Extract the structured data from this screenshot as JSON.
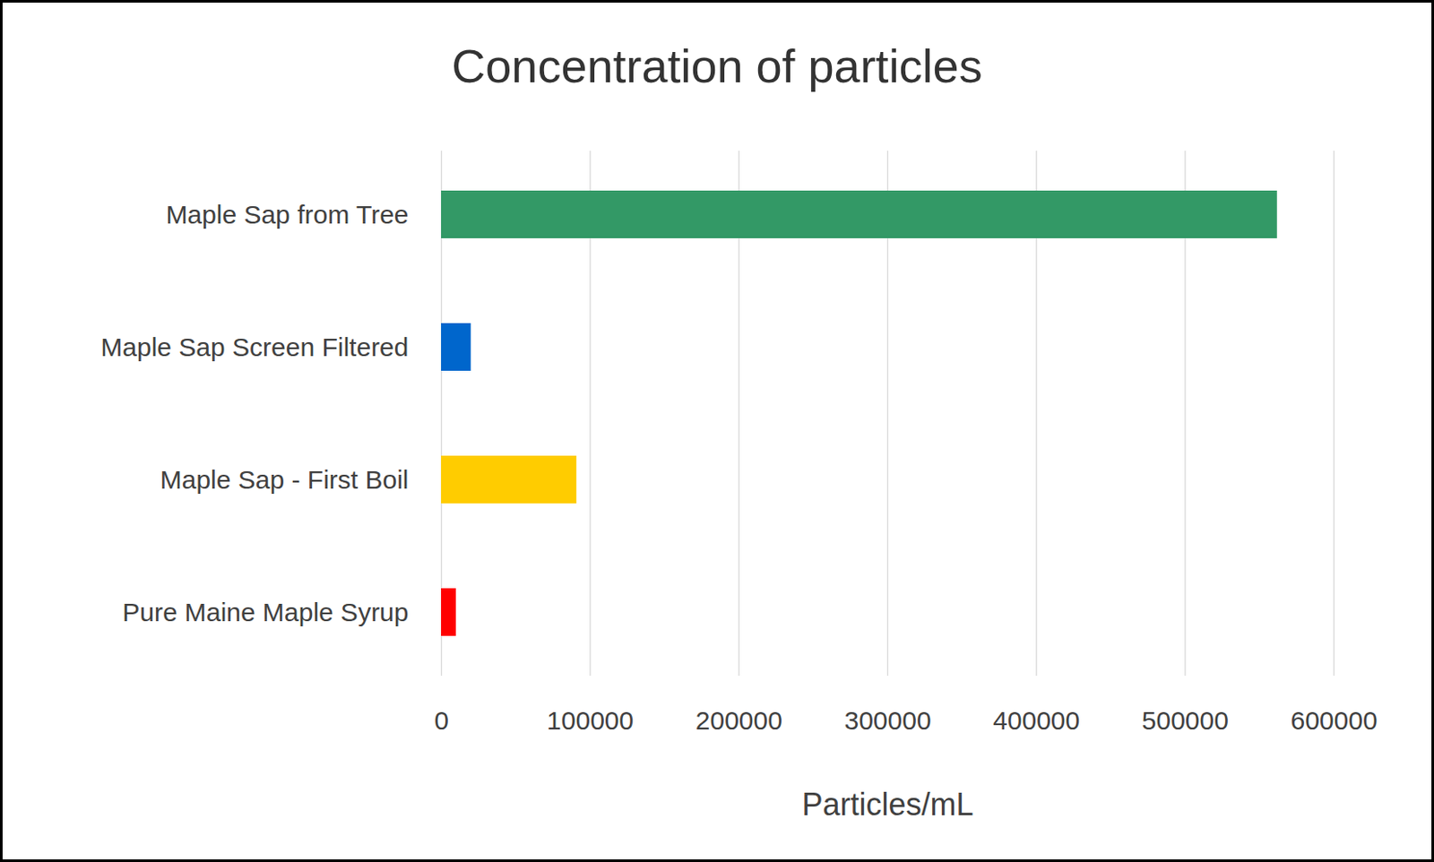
{
  "chart_data": {
    "type": "bar",
    "orientation": "horizontal",
    "title": "Concentration of particles",
    "x_label": "Particles/mL",
    "categories": [
      "Maple Sap from Tree",
      "Maple Sap Screen Filtered",
      "Maple Sap - First Boil",
      "Pure Maine Maple Syrup"
    ],
    "values": [
      562000,
      20000,
      91000,
      10000
    ],
    "colors": [
      "#339966",
      "#0066cc",
      "#ffcc00",
      "#ff0000"
    ],
    "xlim": [
      0,
      600000
    ],
    "xticks": [
      0,
      100000,
      200000,
      300000,
      400000,
      500000,
      600000
    ],
    "grid": true
  }
}
